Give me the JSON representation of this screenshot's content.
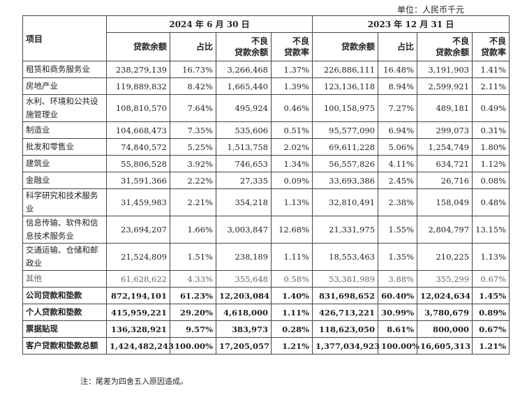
{
  "unit": "单位：人民币千元",
  "header": {
    "item": "项目",
    "period1": "2024 年 6 月 30 日",
    "period2": "2023 年 12 月 31 日",
    "cols": [
      "贷款余额",
      "占比",
      "不良\n贷款余额",
      "不良\n贷款率"
    ]
  },
  "rows": [
    [
      "租赁和商务服务业",
      "238,279,139",
      "16.73%",
      "3,266,468",
      "1.37%",
      "226,886,111",
      "16.48%",
      "3,191,903",
      "1.41%"
    ],
    [
      "房地产业",
      "119,889,832",
      "8.42%",
      "1,665,440",
      "1.39%",
      "123,136,118",
      "8.94%",
      "2,599,921",
      "2.11%"
    ],
    [
      "水利、环境和公共设施管理业",
      "108,810,570",
      "7.64%",
      "495,924",
      "0.46%",
      "100,158,975",
      "7.27%",
      "489,181",
      "0.49%"
    ],
    [
      "制造业",
      "104,668,473",
      "7.35%",
      "535,606",
      "0.51%",
      "95,577,090",
      "6.94%",
      "299,073",
      "0.31%"
    ],
    [
      "批发和零售业",
      "74,840,572",
      "5.25%",
      "1,513,758",
      "2.02%",
      "69,611,228",
      "5.06%",
      "1,254,749",
      "1.80%"
    ],
    [
      "建筑业",
      "55,806,528",
      "3.92%",
      "746,653",
      "1.34%",
      "56,557,826",
      "4.11%",
      "634,721",
      "1.12%"
    ],
    [
      "金融业",
      "31,591,366",
      "2.22%",
      "27,335",
      "0.09%",
      "33,693,386",
      "2.45%",
      "26,716",
      "0.08%"
    ],
    [
      "科学研究和技术服务业",
      "31,459,983",
      "2.21%",
      "354,218",
      "1.13%",
      "32,810,491",
      "2.38%",
      "158,049",
      "0.48%"
    ],
    [
      "信息传输、软件和信息技术服务业",
      "23,694,207",
      "1.66%",
      "3,003,847",
      "12.68%",
      "21,331,975",
      "1.55%",
      "2,804,797",
      "13.15%"
    ],
    [
      "交通运输、仓储和邮政业",
      "21,524,809",
      "1.51%",
      "238,189",
      "1.11%",
      "18,553,463",
      "1.35%",
      "210,225",
      "1.13%"
    ],
    [
      "其他",
      "61,628,622",
      "4.33%",
      "355,648",
      "0.58%",
      "53,381,989",
      "3.88%",
      "355,299",
      "0.67%"
    ],
    [
      "公司贷款和垫款",
      "872,194,101",
      "61.23%",
      "12,203,084",
      "1.40%",
      "831,698,652",
      "60.40%",
      "12,024,634",
      "1.45%"
    ],
    [
      "个人贷款和垫款",
      "415,959,221",
      "29.20%",
      "4,618,000",
      "1.11%",
      "426,713,221",
      "30.99%",
      "3,780,679",
      "0.89%"
    ],
    [
      "票据贴现",
      "136,328,921",
      "9.57%",
      "383,973",
      "0.28%",
      "118,623,050",
      "8.61%",
      "800,000",
      "0.67%"
    ],
    [
      "客户贷款和垫款总额",
      "1,424,482,243",
      "100.00%",
      "17,205,057",
      "1.21%",
      "1,377,034,923",
      "100.00%",
      "16,605,313",
      "1.21%"
    ]
  ],
  "note": "注：尾差为四舍五入原因造成。"
}
